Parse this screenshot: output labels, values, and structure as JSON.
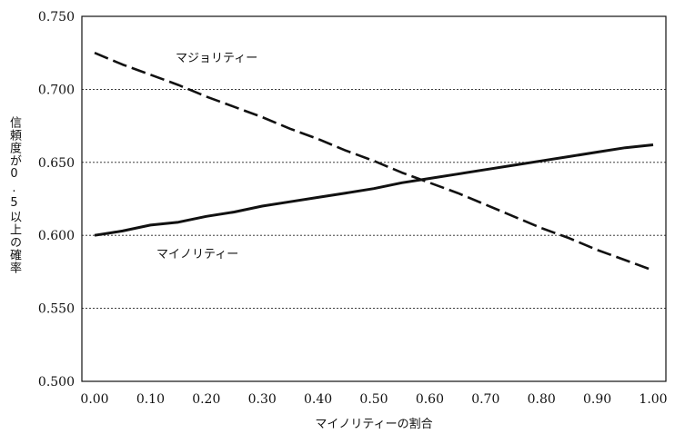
{
  "chart_data": {
    "type": "line",
    "xlabel": "マイノリティーの割合",
    "ylabel": "信頼度が0.5以上の確率",
    "xlim": [
      0,
      1
    ],
    "ylim": [
      0.5,
      0.75
    ],
    "x_ticks": [
      "0.00",
      "0.10",
      "0.20",
      "0.30",
      "0.40",
      "0.50",
      "0.60",
      "0.70",
      "0.80",
      "0.90",
      "1.00"
    ],
    "y_ticks": [
      "0.500",
      "0.550",
      "0.600",
      "0.650",
      "0.700",
      "0.750"
    ],
    "grid": "horizontal dotted",
    "series": [
      {
        "name": "マジョリティー",
        "style": "dashed",
        "color": "#111111",
        "x": [
          0.0,
          0.05,
          0.1,
          0.15,
          0.2,
          0.25,
          0.3,
          0.35,
          0.4,
          0.45,
          0.5,
          0.55,
          0.6,
          0.65,
          0.7,
          0.75,
          0.8,
          0.85,
          0.9,
          0.95,
          1.0
        ],
        "values": [
          0.725,
          0.717,
          0.71,
          0.703,
          0.695,
          0.688,
          0.681,
          0.673,
          0.666,
          0.658,
          0.651,
          0.643,
          0.636,
          0.629,
          0.621,
          0.613,
          0.605,
          0.598,
          0.59,
          0.583,
          0.576
        ]
      },
      {
        "name": "マイノリティー",
        "style": "solid",
        "color": "#111111",
        "x": [
          0.0,
          0.05,
          0.1,
          0.15,
          0.2,
          0.25,
          0.3,
          0.35,
          0.4,
          0.45,
          0.5,
          0.55,
          0.6,
          0.65,
          0.7,
          0.75,
          0.8,
          0.85,
          0.9,
          0.95,
          1.0
        ],
        "values": [
          0.6,
          0.603,
          0.607,
          0.609,
          0.613,
          0.616,
          0.62,
          0.623,
          0.626,
          0.629,
          0.632,
          0.636,
          0.639,
          0.642,
          0.645,
          0.648,
          0.651,
          0.654,
          0.657,
          0.66,
          0.662
        ]
      }
    ]
  }
}
